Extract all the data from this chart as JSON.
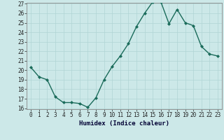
{
  "x": [
    0,
    1,
    2,
    3,
    4,
    5,
    6,
    7,
    8,
    9,
    10,
    11,
    12,
    13,
    14,
    15,
    16,
    17,
    18,
    19,
    20,
    21,
    22,
    23
  ],
  "y": [
    20.3,
    19.3,
    19.0,
    17.2,
    16.6,
    16.6,
    16.5,
    16.1,
    17.1,
    19.0,
    20.4,
    21.5,
    22.8,
    24.6,
    26.0,
    27.2,
    27.2,
    24.9,
    26.4,
    25.0,
    24.7,
    22.5,
    21.7,
    21.5
  ],
  "xlabel": "Humidex (Indice chaleur)",
  "ylim_min": 16,
  "ylim_max": 27,
  "xlim_min": -0.5,
  "xlim_max": 23.5,
  "yticks": [
    16,
    17,
    18,
    19,
    20,
    21,
    22,
    23,
    24,
    25,
    26,
    27
  ],
  "xticks": [
    0,
    1,
    2,
    3,
    4,
    5,
    6,
    7,
    8,
    9,
    10,
    11,
    12,
    13,
    14,
    15,
    16,
    17,
    18,
    19,
    20,
    21,
    22,
    23
  ],
  "line_color": "#1a6b5a",
  "marker_color": "#1a6b5a",
  "bg_color": "#cce8e8",
  "grid_color": "#b0d4d4",
  "marker": "D",
  "marker_size": 2.0,
  "line_width": 1.0,
  "tick_fontsize": 5.5,
  "xlabel_fontsize": 6.5,
  "xlabel_fontweight": "bold",
  "xlabel_color": "#000033"
}
